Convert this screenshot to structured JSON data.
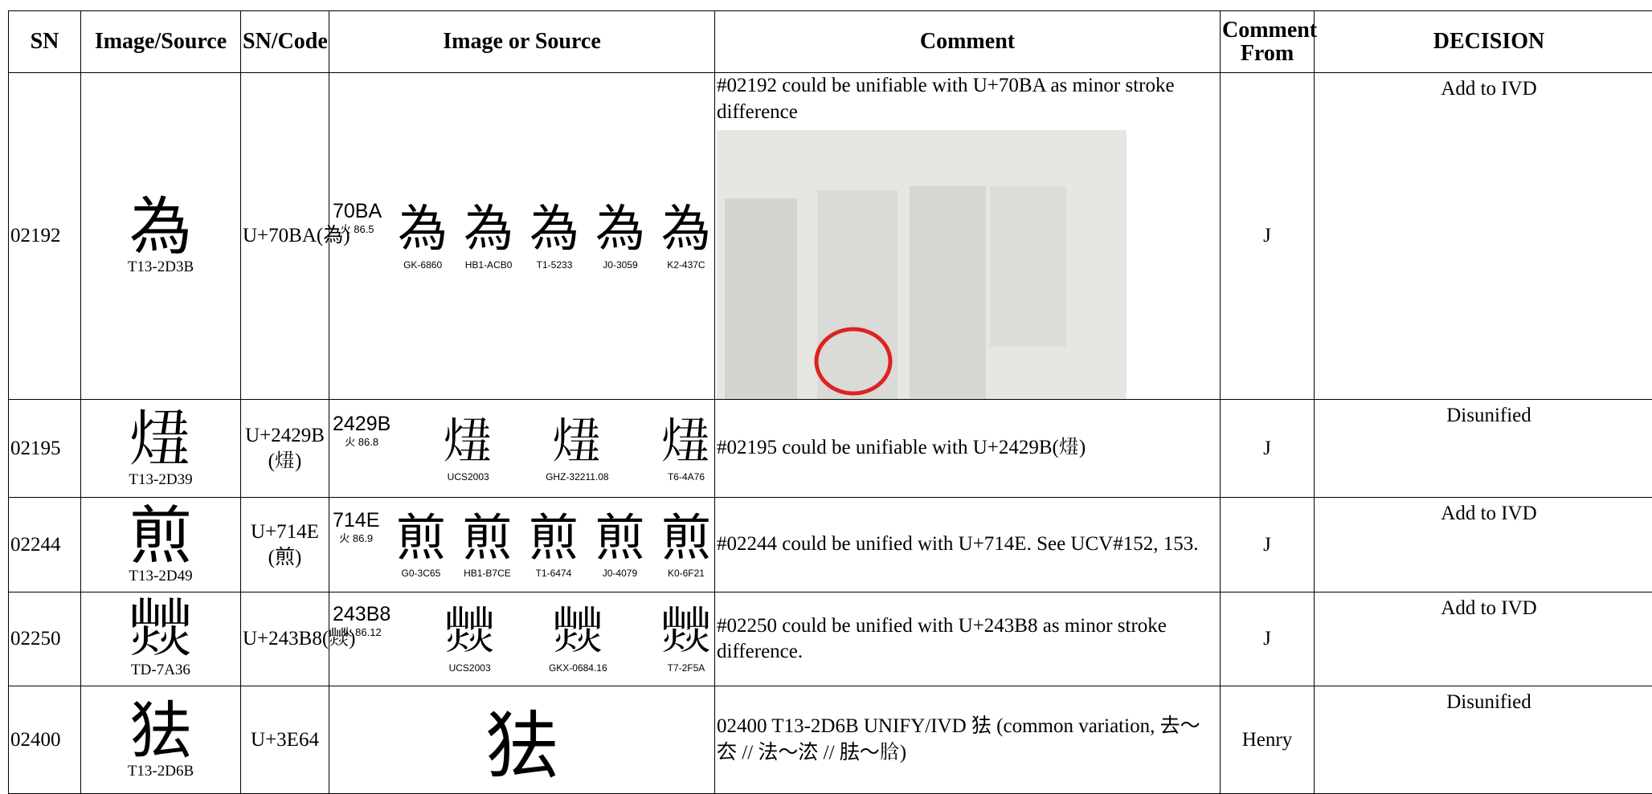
{
  "table": {
    "header": [
      "SN",
      "Image/Source",
      "SN/Code",
      "Image or Source",
      "Comment",
      "Comment From",
      "DECISION"
    ],
    "rows": [
      {
        "sn": "02192",
        "glyph": "為",
        "glyph_source": "T13-2D3B",
        "code": "U+70BA(為)",
        "variants": {
          "code": "70BA",
          "radical": "火 86.5",
          "glyphs": [
            {
              "char": "為",
              "source": "GK-6860"
            },
            {
              "char": "為",
              "source": "HB1-ACB0"
            },
            {
              "char": "為",
              "source": "T1-5233"
            },
            {
              "char": "為",
              "source": "J0-3059"
            },
            {
              "char": "為",
              "source": "K2-437C"
            }
          ]
        },
        "comment": "#02192 could be unifiable with U+70BA as minor stroke difference",
        "comment_from": "J",
        "decision": "Add to IVD"
      },
      {
        "sn": "02195",
        "glyph": "𤊛",
        "glyph_source": "T13-2D39",
        "code": "U+2429B (𤊛)",
        "variants": {
          "code": "2429B",
          "radical": "火 86.8",
          "glyphs": [
            {
              "char": "𤊛",
              "source": "UCS2003"
            },
            {
              "char": "𤊛",
              "source": "GHZ-32211.08"
            },
            {
              "char": "𤊛",
              "source": "T6-4A76"
            }
          ]
        },
        "comment": "#02195 could be unifiable with U+2429B(𤊛)",
        "comment_from": "J",
        "decision": "Disunified"
      },
      {
        "sn": "02244",
        "glyph": "煎",
        "glyph_source": "T13-2D49",
        "code": "U+714E (煎)",
        "variants": {
          "code": "714E",
          "radical": "火 86.9",
          "glyphs": [
            {
              "char": "煎",
              "source": "G0-3C65"
            },
            {
              "char": "煎",
              "source": "HB1-B7CE"
            },
            {
              "char": "煎",
              "source": "T1-6474"
            },
            {
              "char": "煎",
              "source": "J0-4079"
            },
            {
              "char": "煎",
              "source": "K0-6F21"
            }
          ]
        },
        "comment": "#02244 could be unified with U+714E. See UCV#152, 153.",
        "comment_from": "J",
        "decision": "Add to IVD"
      },
      {
        "sn": "02250",
        "glyph": "𤎸",
        "glyph_source": "TD-7A36",
        "code": "U+243B8(𤎸)",
        "variants": {
          "code": "243B8",
          "radical": "火 86.12",
          "glyphs": [
            {
              "char": "𤎸",
              "source": "UCS2003"
            },
            {
              "char": "𤎸",
              "source": "GKX-0684.16"
            },
            {
              "char": "𤎸",
              "source": "T7-2F5A"
            }
          ]
        },
        "comment": "#02250 could be unified with U+243B8 as minor stroke difference.",
        "comment_from": "J",
        "decision": "Add to IVD"
      },
      {
        "sn": "02400",
        "glyph": "㹤",
        "glyph_source": "T13-2D6B",
        "code": "U+3E64",
        "variants": {
          "glyphs": [
            {
              "char": "㹤"
            }
          ]
        },
        "comment": "02400 T13-2D6B UNIFY/IVD 㹤 (common variation, 去～厺 // 法～㳒 // 胠～𦛜)",
        "comment_from": "Henry",
        "decision": "Disunified"
      }
    ]
  }
}
